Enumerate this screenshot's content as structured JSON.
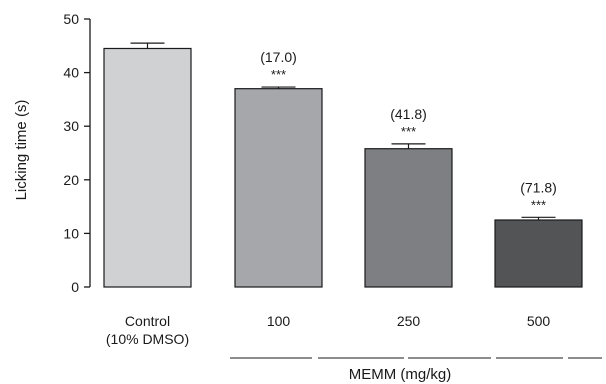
{
  "chart_data": {
    "type": "bar",
    "ylabel": "Licking time (s)",
    "xlabel": "MEMM (mg/kg)",
    "ylim": [
      0,
      50
    ],
    "yticks": [
      "0",
      "10",
      "20",
      "30",
      "40",
      "50"
    ],
    "categories": [
      "Control\n(10% DMSO)",
      "100",
      "250",
      "500"
    ],
    "values": [
      44.5,
      37.0,
      25.8,
      12.5
    ],
    "errors": [
      1.0,
      0.3,
      0.9,
      0.5
    ],
    "inhibition_labels": [
      "",
      "(17.0)",
      "(41.8)",
      "(71.8)"
    ],
    "significance_labels": [
      "",
      "***",
      "***",
      "***"
    ],
    "bar_colors": [
      "#d0d1d3",
      "#a6a7aa",
      "#7e7f82",
      "#535456"
    ]
  }
}
